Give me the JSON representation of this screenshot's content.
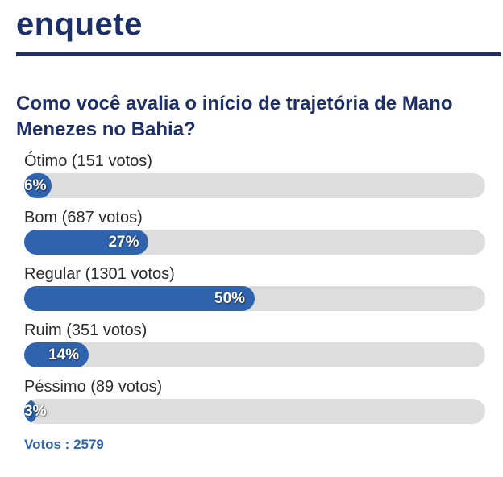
{
  "poll": {
    "heading": "enquete",
    "question": "Como você avalia o início de trajetória de Mano Menezes no Bahia?",
    "options": [
      {
        "label": "Ótimo (151 votos)",
        "percent_label": "6%",
        "percent": 6
      },
      {
        "label": "Bom (687 votos)",
        "percent_label": "27%",
        "percent": 27
      },
      {
        "label": "Regular (1301 votos)",
        "percent_label": "50%",
        "percent": 50
      },
      {
        "label": "Ruim (351 votos)",
        "percent_label": "14%",
        "percent": 14
      },
      {
        "label": "Péssimo (89 votos)",
        "percent_label": "3%",
        "percent": 3
      }
    ],
    "total_label": "Votos : 2579"
  },
  "colors": {
    "heading": "#1c2f68",
    "bar_fill": "#2f63ae",
    "bar_track": "#dddddd",
    "total_text": "#2f63ae"
  }
}
